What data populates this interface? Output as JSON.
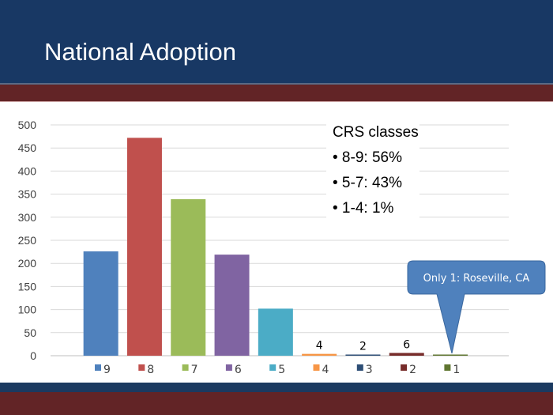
{
  "header": {
    "title": "National Adoption"
  },
  "chart_data": {
    "type": "bar",
    "title": "",
    "xlabel": "",
    "ylabel": "",
    "categories": [
      "9",
      "8",
      "7",
      "6",
      "5",
      "4",
      "3",
      "2",
      "1"
    ],
    "values": [
      226,
      472,
      339,
      219,
      102,
      4,
      2,
      6,
      1
    ],
    "data_labels": {
      "5": "4",
      "6": "2",
      "7": "6"
    },
    "colors": [
      "#4f81bd",
      "#c0504d",
      "#9bbb59",
      "#8064a2",
      "#4bacc6",
      "#f79646",
      "#2c4d75",
      "#772c2a",
      "#5f7530"
    ],
    "ylim": [
      0,
      500
    ],
    "yticks": [
      "0",
      "50",
      "100",
      "150",
      "200",
      "250",
      "300",
      "350",
      "400",
      "450",
      "500"
    ],
    "grid": true,
    "legend": "bottom"
  },
  "textbox": {
    "heading": "CRS classes",
    "items": [
      "• 8-9:  56%",
      "• 5-7:  43%",
      "• 1-4:  1%"
    ]
  },
  "callout": {
    "text": "Only 1:  Roseville, CA",
    "color": "#4f81bd"
  }
}
